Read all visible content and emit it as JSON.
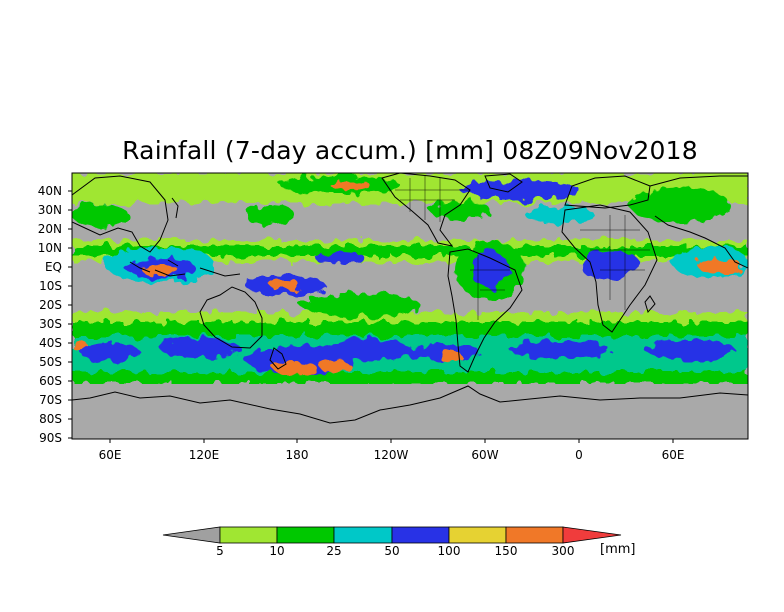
{
  "title": "Rainfall (7-day accum.) [mm] 08Z09Nov2018",
  "map": {
    "lat_labels": [
      "40N",
      "30N",
      "20N",
      "10N",
      "EQ",
      "10S",
      "20S",
      "30S",
      "40S",
      "50S",
      "60S",
      "70S",
      "80S",
      "90S"
    ],
    "lon_labels": [
      "60E",
      "120E",
      "180",
      "120W",
      "60W",
      "0",
      "60E"
    ],
    "background_color": "#a9a9a9"
  },
  "colorbar": {
    "thresholds": [
      "5",
      "10",
      "25",
      "50",
      "100",
      "150",
      "300"
    ],
    "unit": "[mm]",
    "colors": [
      "#a0a0a0",
      "#a0e632",
      "#00c800",
      "#00c8c8",
      "#2832e6",
      "#e6d232",
      "#f07828",
      "#f03c3c"
    ]
  }
}
